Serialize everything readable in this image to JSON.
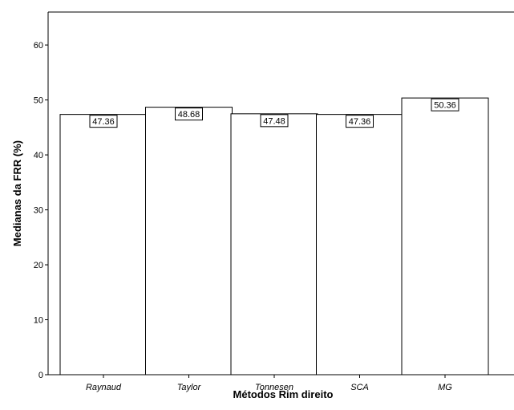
{
  "chart_data": {
    "type": "bar",
    "title": "",
    "xlabel": "Métodos Rim direito",
    "ylabel": "Medianas da FRR (%)",
    "categories": [
      "Raynaud",
      "Taylor",
      "Tonnesen",
      "SCA",
      "MG"
    ],
    "values": [
      47.36,
      48.68,
      47.48,
      47.36,
      50.36
    ],
    "data_labels": [
      "47.36",
      "48.68",
      "47.48",
      "47.36",
      "50.36"
    ],
    "ylim": [
      0,
      66
    ],
    "yticks": [
      0,
      10,
      20,
      30,
      40,
      50,
      60
    ],
    "ytick_labels": [
      "0",
      "10",
      "20",
      "30",
      "40",
      "50",
      "60"
    ],
    "grid": false,
    "legend": "none",
    "colors": {
      "bar_fill": "#ffffff",
      "bar_stroke": "#000000",
      "axis": "#000000"
    }
  }
}
